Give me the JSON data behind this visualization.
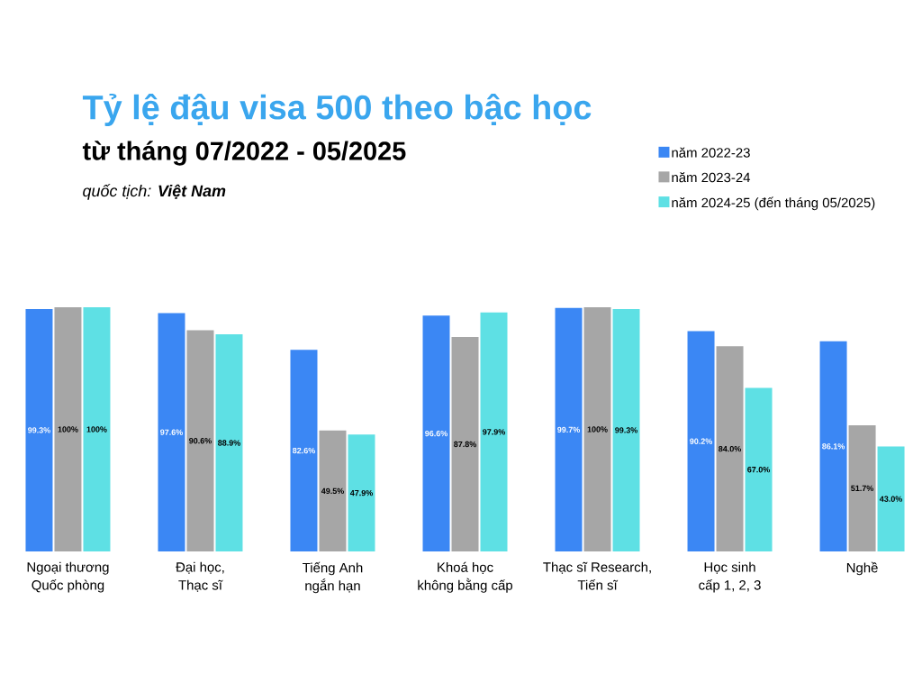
{
  "chart_data": {
    "type": "bar",
    "title": "Tỷ lệ đậu visa 500 theo bậc học",
    "subtitle": "từ tháng 07/2022 - 05/2025",
    "annotations": [
      "quốc tịch: **Việt Nam**"
    ],
    "categories": [
      "Ngoại thương\nQuốc phòng",
      "Đại học,\nThạc sĩ",
      "Tiếng Anh\nngắn hạn",
      "Khoá học\nkhông bằng cấp",
      "Thạc sĩ Research,\nTiến sĩ",
      "Học sinh\ncấp 1, 2, 3",
      "Nghề"
    ],
    "series": [
      {
        "name": "năm 2022-23",
        "color": "#3b87f4",
        "values": [
          99.3,
          97.6,
          82.6,
          96.6,
          99.7,
          90.2,
          86.1
        ],
        "value_labels": [
          "99.3%",
          "97.6%",
          "82.6%",
          "96.6%",
          "99.7%",
          "90.2%",
          "86.1%"
        ]
      },
      {
        "name": "năm 2023-24",
        "color": "#a6a6a6",
        "values": [
          100,
          90.6,
          49.5,
          87.8,
          100,
          84.0,
          51.7
        ],
        "value_labels": [
          "100%",
          "90.6%",
          "49.5%",
          "87.8%",
          "100%",
          "84.0%",
          "51.7%"
        ]
      },
      {
        "name": "năm 2024-25 (đến tháng 05/2025)",
        "color": "#5ee0e4",
        "values": [
          100,
          88.9,
          47.9,
          97.9,
          99.3,
          67.0,
          43.0
        ],
        "value_labels": [
          "100%",
          "88.9%",
          "47.9%",
          "97.9%",
          "99.3%",
          "67.0%",
          "43.0%"
        ]
      }
    ],
    "legend": "top right"
  }
}
